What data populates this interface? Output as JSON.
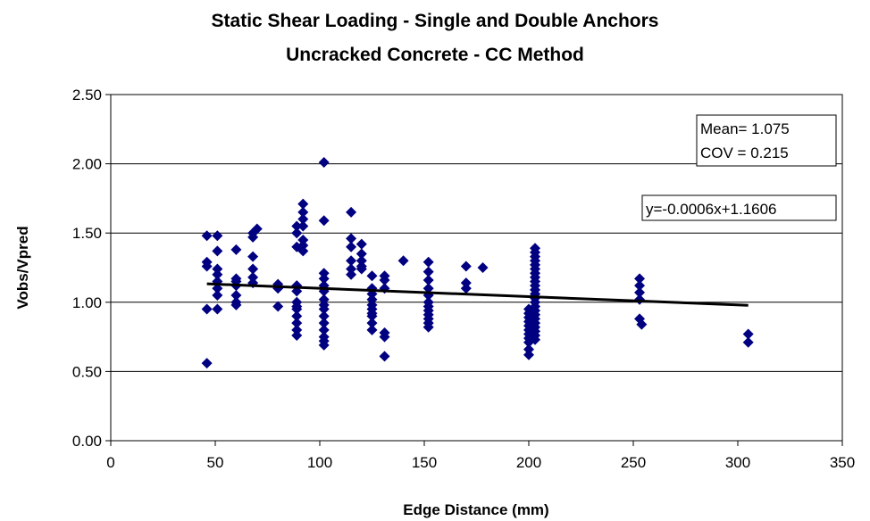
{
  "chart_data": {
    "type": "scatter",
    "title": "Static Shear Loading - Single and Double Anchors",
    "subtitle": "Uncracked Concrete - CC Method",
    "xlabel": "Edge Distance (mm)",
    "ylabel": "Vobs/Vpred",
    "xlim": [
      0,
      350
    ],
    "ylim": [
      0.0,
      2.5
    ],
    "x_ticks": [
      "0",
      "50",
      "100",
      "150",
      "200",
      "250",
      "300",
      "350"
    ],
    "y_ticks": [
      "0.00",
      "0.50",
      "1.00",
      "1.50",
      "2.00",
      "2.50"
    ],
    "grid": "horizontal",
    "marker_color": "#000080",
    "trendline_color": "#000000",
    "stats_box": {
      "mean": "Mean= 1.075",
      "cov": "COV = 0.215"
    },
    "trendline_label": "y=-0.0006x+1.1606",
    "trendline": {
      "slope": -0.0006,
      "intercept": 1.1606,
      "x_range": [
        46,
        305
      ]
    },
    "points": [
      [
        46,
        1.48
      ],
      [
        46,
        1.29
      ],
      [
        46,
        1.26
      ],
      [
        46,
        0.95
      ],
      [
        46,
        0.56
      ],
      [
        51,
        1.48
      ],
      [
        51,
        1.37
      ],
      [
        51,
        1.24
      ],
      [
        51,
        1.2
      ],
      [
        51,
        1.15
      ],
      [
        51,
        1.1
      ],
      [
        51,
        1.05
      ],
      [
        51,
        0.95
      ],
      [
        60,
        1.38
      ],
      [
        60,
        1.17
      ],
      [
        60,
        1.15
      ],
      [
        60,
        1.12
      ],
      [
        60,
        1.05
      ],
      [
        60,
        1.0
      ],
      [
        60,
        0.98
      ],
      [
        68,
        1.5
      ],
      [
        70,
        1.53
      ],
      [
        68,
        1.47
      ],
      [
        68,
        1.33
      ],
      [
        68,
        1.24
      ],
      [
        68,
        1.18
      ],
      [
        68,
        1.14
      ],
      [
        80,
        1.13
      ],
      [
        80,
        1.1
      ],
      [
        80,
        0.97
      ],
      [
        89,
        1.55
      ],
      [
        89,
        1.5
      ],
      [
        89,
        1.4
      ],
      [
        89,
        1.12
      ],
      [
        89,
        1.08
      ],
      [
        89,
        1.0
      ],
      [
        89,
        0.97
      ],
      [
        89,
        0.95
      ],
      [
        89,
        0.9
      ],
      [
        89,
        0.85
      ],
      [
        89,
        0.8
      ],
      [
        89,
        0.76
      ],
      [
        92,
        1.71
      ],
      [
        92,
        1.65
      ],
      [
        92,
        1.6
      ],
      [
        92,
        1.55
      ],
      [
        92,
        1.45
      ],
      [
        92,
        1.41
      ],
      [
        92,
        1.37
      ],
      [
        102,
        2.01
      ],
      [
        102,
        1.59
      ],
      [
        102,
        1.21
      ],
      [
        102,
        1.17
      ],
      [
        102,
        1.12
      ],
      [
        102,
        1.08
      ],
      [
        102,
        1.02
      ],
      [
        102,
        0.98
      ],
      [
        102,
        0.95
      ],
      [
        102,
        0.9
      ],
      [
        102,
        0.85
      ],
      [
        102,
        0.8
      ],
      [
        102,
        0.75
      ],
      [
        102,
        0.72
      ],
      [
        102,
        0.69
      ],
      [
        115,
        1.65
      ],
      [
        115,
        1.46
      ],
      [
        115,
        1.4
      ],
      [
        115,
        1.3
      ],
      [
        115,
        1.24
      ],
      [
        115,
        1.2
      ],
      [
        120,
        1.42
      ],
      [
        120,
        1.35
      ],
      [
        120,
        1.3
      ],
      [
        120,
        1.26
      ],
      [
        120,
        1.24
      ],
      [
        125,
        1.19
      ],
      [
        125,
        1.1
      ],
      [
        125,
        1.06
      ],
      [
        125,
        1.02
      ],
      [
        125,
        0.98
      ],
      [
        125,
        0.95
      ],
      [
        125,
        0.92
      ],
      [
        125,
        0.9
      ],
      [
        125,
        0.85
      ],
      [
        125,
        0.8
      ],
      [
        131,
        1.19
      ],
      [
        131,
        1.16
      ],
      [
        131,
        1.1
      ],
      [
        131,
        0.78
      ],
      [
        131,
        0.75
      ],
      [
        131,
        0.61
      ],
      [
        140,
        1.3
      ],
      [
        152,
        1.29
      ],
      [
        152,
        1.22
      ],
      [
        152,
        1.16
      ],
      [
        152,
        1.1
      ],
      [
        152,
        1.05
      ],
      [
        152,
        1.0
      ],
      [
        152,
        0.97
      ],
      [
        152,
        0.94
      ],
      [
        152,
        0.91
      ],
      [
        152,
        0.88
      ],
      [
        152,
        0.85
      ],
      [
        152,
        0.82
      ],
      [
        170,
        1.26
      ],
      [
        170,
        1.14
      ],
      [
        170,
        1.1
      ],
      [
        178,
        1.25
      ],
      [
        200,
        0.95
      ],
      [
        200,
        0.92
      ],
      [
        200,
        0.89
      ],
      [
        200,
        0.86
      ],
      [
        200,
        0.83
      ],
      [
        200,
        0.8
      ],
      [
        200,
        0.77
      ],
      [
        200,
        0.74
      ],
      [
        200,
        0.71
      ],
      [
        200,
        0.66
      ],
      [
        200,
        0.62
      ],
      [
        203,
        1.39
      ],
      [
        203,
        1.36
      ],
      [
        203,
        1.33
      ],
      [
        203,
        1.3
      ],
      [
        203,
        1.27
      ],
      [
        203,
        1.24
      ],
      [
        203,
        1.21
      ],
      [
        203,
        1.18
      ],
      [
        203,
        1.15
      ],
      [
        203,
        1.12
      ],
      [
        203,
        1.09
      ],
      [
        203,
        1.06
      ],
      [
        203,
        1.03
      ],
      [
        203,
        1.0
      ],
      [
        203,
        0.97
      ],
      [
        203,
        0.94
      ],
      [
        203,
        0.91
      ],
      [
        203,
        0.88
      ],
      [
        203,
        0.85
      ],
      [
        203,
        0.82
      ],
      [
        203,
        0.79
      ],
      [
        203,
        0.76
      ],
      [
        203,
        0.73
      ],
      [
        253,
        1.17
      ],
      [
        253,
        1.12
      ],
      [
        253,
        1.07
      ],
      [
        253,
        1.02
      ],
      [
        253,
        0.88
      ],
      [
        254,
        0.84
      ],
      [
        305,
        0.77
      ],
      [
        305,
        0.71
      ]
    ]
  }
}
